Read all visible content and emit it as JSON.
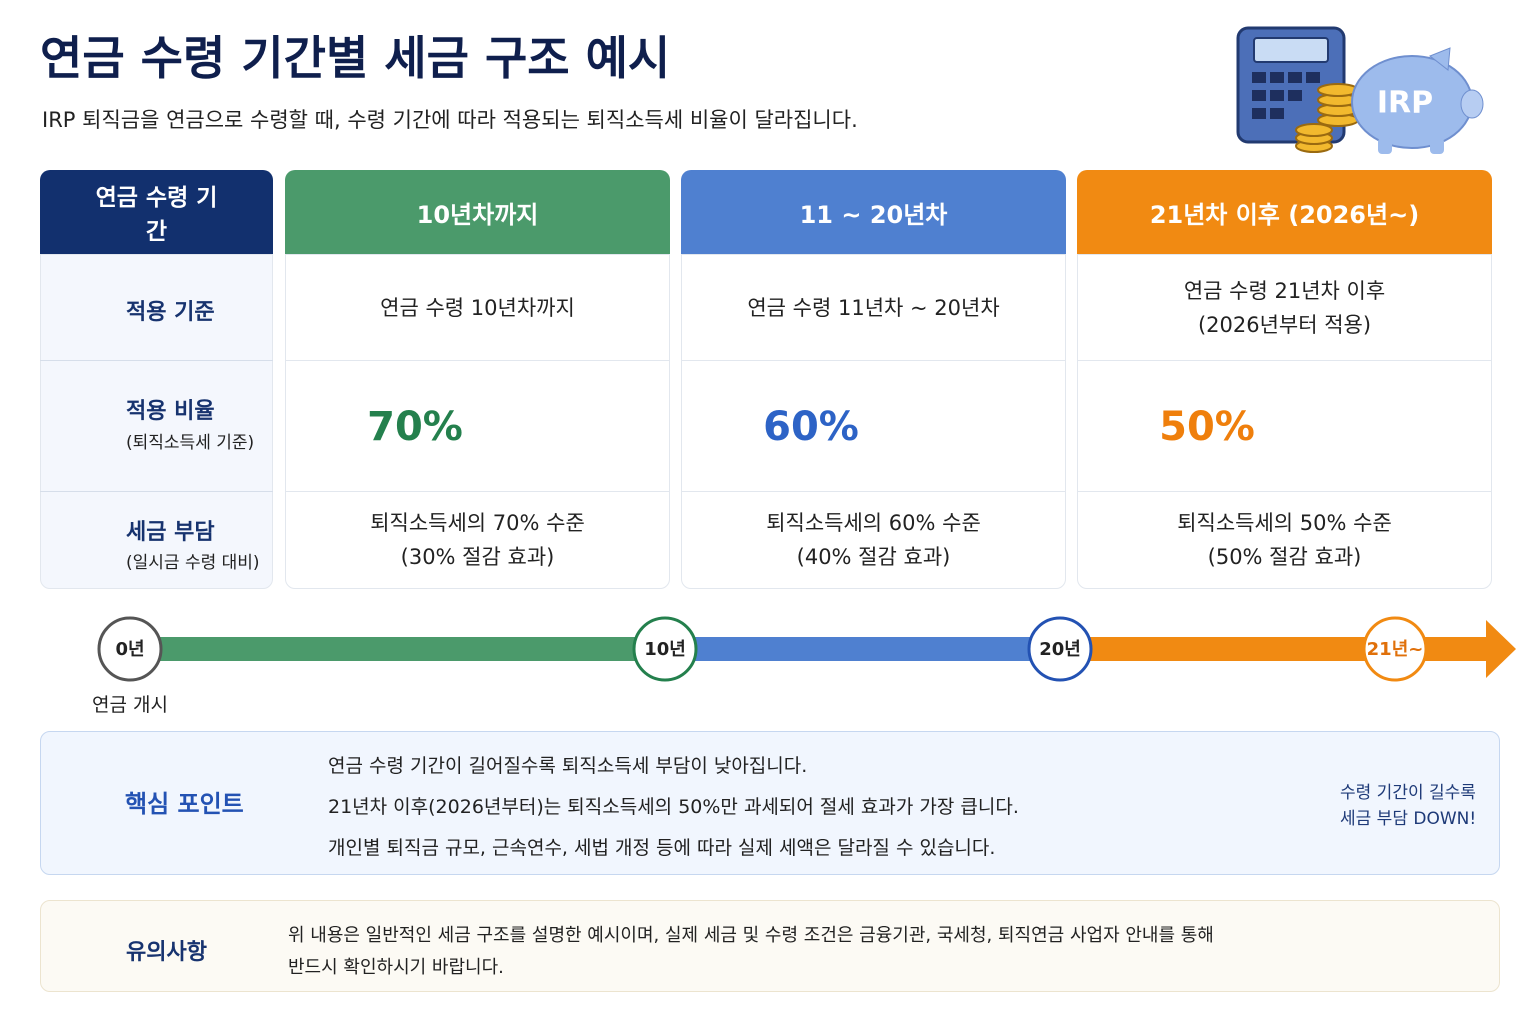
{
  "header": {
    "title": "연금 수령 기간별 세금 구조 예시",
    "subtitle": "IRP 퇴직금을 연금으로 수령할 때, 수령 기간에 따라 적용되는 퇴직소득세 비율이 달라집니다.",
    "badge": "IRP"
  },
  "table": {
    "corner": "연금 수령 기간",
    "row_headers": [
      {
        "title": "적용 기준"
      },
      {
        "title": "적용 비율",
        "note": "(퇴직소득세 기준)"
      },
      {
        "title": "세금 부담",
        "note": "(일시금 수령 대비)"
      }
    ],
    "columns": [
      {
        "name": "10년차까지",
        "color": "#4b9a6b",
        "text_color": "#24804d",
        "criteria": [
          "연금 수령 10년차까지"
        ],
        "ratio": {
          "value": 70,
          "label": "70%"
        },
        "burden": [
          "퇴직소득세의 70% 수준",
          "(30% 절감 효과)"
        ]
      },
      {
        "name": "11 ~ 20년차",
        "color": "#4f80d0",
        "text_color": "#2d63c6",
        "criteria": [
          "연금 수령 11년차 ~ 20년차"
        ],
        "ratio": {
          "value": 60,
          "label": "60%"
        },
        "burden": [
          "퇴직소득세의 60% 수준",
          "(40% 절감 효과)"
        ]
      },
      {
        "name": "21년차 이후 (2026년~)",
        "color": "#f18a12",
        "text_color": "#ef7f0c",
        "criteria": [
          "연금 수령 21년차 이후",
          "(2026년부터 적용)"
        ],
        "ratio": {
          "value": 50,
          "label": "50%"
        },
        "burden": [
          "퇴직소득세의 50% 수준",
          "(50% 절감 효과)"
        ]
      }
    ]
  },
  "timeline": {
    "marks": [
      "0년",
      "10년",
      "20년",
      "21년~"
    ],
    "start_label": "연금 개시"
  },
  "key_points": {
    "title": "핵심 포인트",
    "items": [
      "연금 수령 기간이 길어질수록 퇴직소득세 부담이 낮아집니다.",
      "21년차 이후(2026년부터)는 퇴직소득세의 50%만 과세되어 절세 효과가 가장 큽니다.",
      "개인별 퇴직금 규모, 근속연수, 세법 개정 등에 따라 실제 세액은 달라질 수 있습니다."
    ],
    "callout": [
      "수령 기간이 길수록",
      "세금 부담 DOWN!"
    ]
  },
  "caution": {
    "title": "유의사항",
    "text": [
      "위 내용은 일반적인 세금 구조를 설명한 예시이며, 실제 세금 및 수령 조건은 금융기관, 국세청, 퇴직연금 사업자 안내를 통해",
      "반드시 확인하시기 바랍니다."
    ]
  }
}
